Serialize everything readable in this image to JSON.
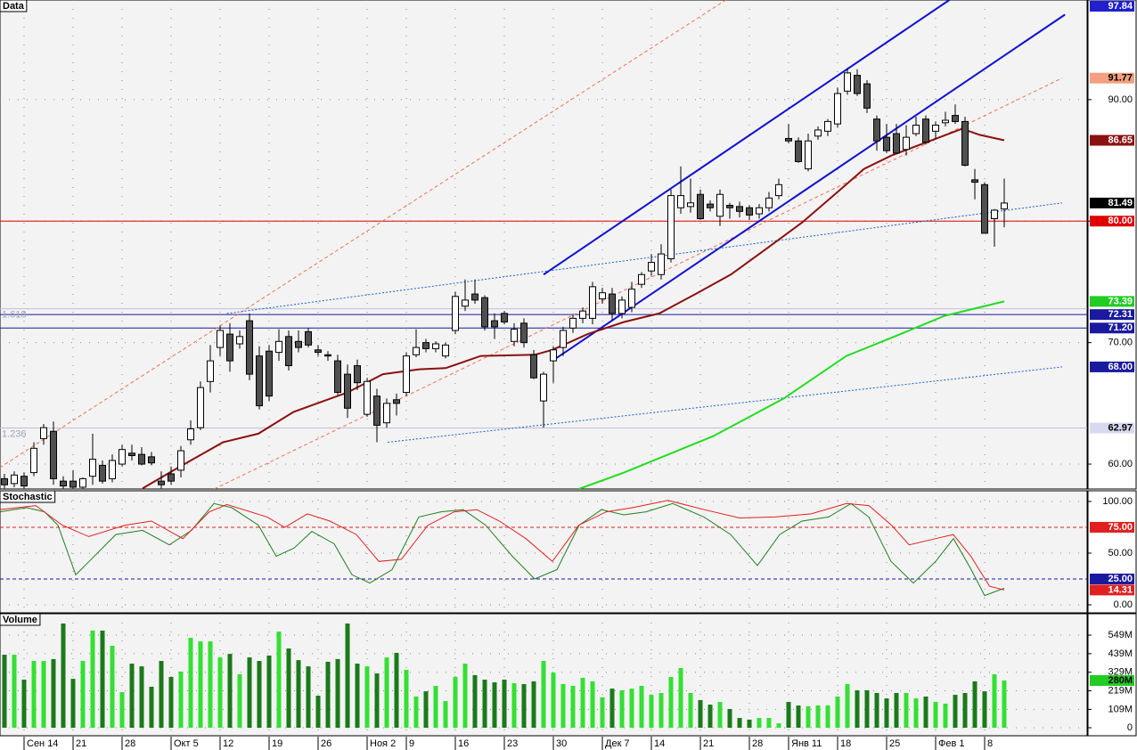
{
  "chart_data": [
    {
      "type": "candlestick",
      "title": "Data",
      "open": [
        58.8,
        58.4,
        59.0,
        59.3,
        62.1,
        62.7,
        58.6,
        58.6,
        58.1,
        59.0,
        59.9,
        58.8,
        60.0,
        60.9,
        60.8,
        60.6,
        58.6,
        59.2,
        59.5,
        62.0,
        63.0,
        66.8,
        69.6,
        70.7,
        69.9,
        71.8,
        68.9,
        69.3,
        69.2,
        70.5,
        70.1,
        70.9,
        69.4,
        69.0,
        68.5,
        67.4,
        68.1,
        64.1,
        65.6,
        63.4,
        65.3,
        65.9,
        69.0,
        70.0,
        69.5,
        68.9,
        71.0,
        73.0,
        74.0,
        73.7,
        71.8,
        72.4,
        70.1,
        71.6,
        69.0,
        65.2,
        68.5,
        69.6,
        71.2,
        72.0,
        72.0,
        73.6,
        74.0,
        72.4,
        72.9,
        74.8,
        75.9,
        75.6,
        76.9,
        81.1,
        81.2,
        82.2,
        81.4,
        80.4,
        81.3,
        81.2,
        81.1,
        80.6,
        81.1,
        82.1,
        86.8,
        86.6,
        84.3,
        87.0,
        87.4,
        88.0,
        90.7,
        92.0,
        91.3,
        88.4,
        86.9,
        87.2,
        85.9,
        87.2,
        88.4,
        87.4,
        88.1,
        88.7,
        88.2,
        83.4,
        83.0,
        80.2,
        81.0
      ],
      "high": [
        59.2,
        59.4,
        59.3,
        61.8,
        63.3,
        63.5,
        59.0,
        59.5,
        58.9,
        62.5,
        60.3,
        60.8,
        61.6,
        61.6,
        61.4,
        61.0,
        59.4,
        59.8,
        61.5,
        63.6,
        66.8,
        69.8,
        71.4,
        71.6,
        71.0,
        72.4,
        69.7,
        69.8,
        71.1,
        71.0,
        71.0,
        71.2,
        69.8,
        69.3,
        69.0,
        68.2,
        68.6,
        67.1,
        66.2,
        65.4,
        65.8,
        69.2,
        71.1,
        70.3,
        70.1,
        70.0,
        74.2,
        75.2,
        75.2,
        73.9,
        72.4,
        72.6,
        71.6,
        72.0,
        69.4,
        67.6,
        69.7,
        71.3,
        72.3,
        72.9,
        75.0,
        74.5,
        74.5,
        73.8,
        75.0,
        75.8,
        77.3,
        78.1,
        82.6,
        84.5,
        83.5,
        82.6,
        81.7,
        82.6,
        81.5,
        81.6,
        81.3,
        81.4,
        82.4,
        83.5,
        88.0,
        86.9,
        87.2,
        87.8,
        88.4,
        91.0,
        92.6,
        92.5,
        91.6,
        88.7,
        88.0,
        88.0,
        87.9,
        88.6,
        88.7,
        88.2,
        89.0,
        89.6,
        88.6,
        84.3,
        83.2,
        81.0,
        83.5
      ],
      "low": [
        58.0,
        58.1,
        58.0,
        59.0,
        61.6,
        58.3,
        58.0,
        58.0,
        58.0,
        58.3,
        58.4,
        58.5,
        59.8,
        60.3,
        59.9,
        59.9,
        58.0,
        58.3,
        58.9,
        61.6,
        62.8,
        65.9,
        68.9,
        67.6,
        69.5,
        66.9,
        64.5,
        65.2,
        68.5,
        67.7,
        69.2,
        69.6,
        68.9,
        68.5,
        65.7,
        63.8,
        66.1,
        63.9,
        61.8,
        63.0,
        64.0,
        65.6,
        68.8,
        69.2,
        69.2,
        68.7,
        70.7,
        72.6,
        73.2,
        71.0,
        70.3,
        71.5,
        69.7,
        69.6,
        67.0,
        63.0,
        66.7,
        68.9,
        70.8,
        71.6,
        71.5,
        73.2,
        71.9,
        72.0,
        72.5,
        74.5,
        75.5,
        75.2,
        76.6,
        80.6,
        80.7,
        80.1,
        80.8,
        79.6,
        80.2,
        80.3,
        80.1,
        80.2,
        80.8,
        81.8,
        86.4,
        84.8,
        84.1,
        86.7,
        87.0,
        87.7,
        90.4,
        90.3,
        88.9,
        85.8,
        85.6,
        85.5,
        85.4,
        87.0,
        86.3,
        86.8,
        87.8,
        88.0,
        84.5,
        81.8,
        79.0,
        77.9,
        79.5
      ],
      "close": [
        58.3,
        59.1,
        58.2,
        61.3,
        63.0,
        58.8,
        58.2,
        58.1,
        58.8,
        60.4,
        58.6,
        60.3,
        61.2,
        60.7,
        60.0,
        60.1,
        58.3,
        58.6,
        61.1,
        62.9,
        66.3,
        68.5,
        71.0,
        68.5,
        70.5,
        67.4,
        64.8,
        65.6,
        70.1,
        68.1,
        69.6,
        69.8,
        69.2,
        68.9,
        65.9,
        64.6,
        66.7,
        66.8,
        63.2,
        65.0,
        65.0,
        68.9,
        69.6,
        69.5,
        69.9,
        69.8,
        73.8,
        73.5,
        73.5,
        71.3,
        71.3,
        71.7,
        71.1,
        70.0,
        67.1,
        67.4,
        69.4,
        71.0,
        72.0,
        72.6,
        74.6,
        74.1,
        72.4,
        73.5,
        74.4,
        75.6,
        76.6,
        77.3,
        82.1,
        82.1,
        81.5,
        80.2,
        81.1,
        82.2,
        81.1,
        80.8,
        80.5,
        81.1,
        81.9,
        83.0,
        86.6,
        84.9,
        86.6,
        87.5,
        88.2,
        90.5,
        92.2,
        90.5,
        89.3,
        86.6,
        85.8,
        85.6,
        86.9,
        87.9,
        86.5,
        87.9,
        88.3,
        88.2,
        84.6,
        83.2,
        79.0,
        80.9,
        81.49
      ],
      "up_color": "#ffffff",
      "down_color": "#505050",
      "ylim": [
        57.95,
        98.2
      ],
      "yticks": [
        {
          "value": 60,
          "label": "60.00"
        },
        {
          "value": 70,
          "label": "70.00"
        },
        {
          "value": 80,
          "label": "80.00"
        },
        {
          "value": 90,
          "label": "90.00"
        }
      ],
      "grid": true,
      "lines": [
        {
          "color": "#8b1010",
          "x": [
            14.1,
            17.7,
            22.3,
            25.9,
            29.5,
            35,
            38.6,
            42.3,
            45,
            48.6,
            54.1,
            55.9,
            59.5,
            63.2,
            66.8,
            70.5,
            74.1,
            77.7,
            81.4,
            85,
            87.7,
            90.5,
            94.1,
            97.7,
            99.5,
            102
          ],
          "values": [
            58,
            59.7,
            61.8,
            62.5,
            64.3,
            65.9,
            67.4,
            67.8,
            67.9,
            68.9,
            69,
            69.4,
            70.7,
            71.7,
            72.4,
            74,
            75.6,
            77.7,
            79.9,
            82.4,
            84.3,
            85.4,
            86.5,
            87.6,
            87.1,
            86.65
          ]
        },
        {
          "color": "#22dd22",
          "x": [
            58.6,
            63.2,
            72.3,
            79.5,
            85.9,
            90.5,
            95.9,
            102
          ],
          "values": [
            57.95,
            59.3,
            62.3,
            65.4,
            68.9,
            70.4,
            72.2,
            73.39
          ]
        }
      ],
      "trendlines": [
        {
          "color": "#f07050",
          "dash": "dashed",
          "x": [
            -0.5,
            73.6
          ],
          "values": [
            59.7,
            98.2
          ]
        },
        {
          "color": "#f07050",
          "dash": "dashed",
          "x": [
            21.4,
            107.9
          ],
          "values": [
            57.95,
            91.77
          ]
        },
        {
          "color": "#1010d0",
          "dash": "solid",
          "x": [
            55,
            96.4
          ],
          "values": [
            75.6,
            98.2
          ]
        },
        {
          "color": "#1010d0",
          "dash": "solid",
          "x": [
            55.9,
            108.2
          ],
          "values": [
            68.5,
            97.0
          ]
        },
        {
          "color": "#1060d0",
          "dash": "dotted",
          "x": [
            22.7,
            107.9
          ],
          "values": [
            72.4,
            81.5
          ]
        },
        {
          "color": "#1060d0",
          "dash": "dotted",
          "x": [
            39.1,
            107.9
          ],
          "values": [
            61.8,
            68.0
          ]
        }
      ],
      "hlines": [
        {
          "value": 80,
          "color": "#e00000"
        },
        {
          "value": 72.31,
          "color": "#1a1aa0"
        },
        {
          "value": 71.2,
          "color": "#1a1aa0"
        },
        {
          "value": 72.79,
          "color": "#c0c0d8",
          "label": "1.618"
        },
        {
          "value": 62.97,
          "color": "#c0c0d8",
          "label": "1.236"
        }
      ],
      "markers": [
        {
          "value": 97.84,
          "label": "97.84",
          "color": "#2020d0",
          "text_color": "#ffffff"
        },
        {
          "value": 91.77,
          "label": "91.77",
          "color": "#f4a080",
          "text_color": "#000000"
        },
        {
          "value": 86.65,
          "label": "86.65",
          "color": "#8b1010",
          "text_color": "#ffffff"
        },
        {
          "value": 81.49,
          "label": "81.49",
          "color": "#000000",
          "text_color": "#ffffff"
        },
        {
          "value": 80,
          "label": "80.00",
          "color": "#e00000",
          "text_color": "#ffffff"
        },
        {
          "value": 73.39,
          "label": "73.39",
          "color": "#22cc22",
          "text_color": "#ffffff"
        },
        {
          "value": 72.31,
          "label": "72.31",
          "color": "#1a1aa0",
          "text_color": "#ffffff"
        },
        {
          "value": 71.2,
          "label": "71.20",
          "color": "#1a1aa0",
          "text_color": "#ffffff"
        },
        {
          "value": 68,
          "label": "68.00",
          "color": "#1a1aa0",
          "text_color": "#ffffff"
        },
        {
          "value": 62.97,
          "label": "62.97",
          "color": "#d8d8f0",
          "text_color": "#000000"
        }
      ]
    },
    {
      "type": "line",
      "title": "Stochastic",
      "series": [
        {
          "color": "#208020",
          "x": [
            -0.45,
            2.27,
            4.09,
            5.45,
            7.27,
            8.64,
            11.36,
            14.09,
            16.82,
            19.09,
            21.36,
            23.18,
            25.91,
            27.73,
            29.55,
            31.36,
            33.64,
            35.45,
            37.27,
            39.55,
            42.27,
            44.55,
            46.82,
            49.09,
            51.82,
            54.09,
            56.36,
            58.64,
            60.91,
            63.18,
            65.45,
            68.18,
            71.36,
            74.09,
            76.82,
            79.09,
            81.36,
            84.09,
            86.36,
            88.18,
            90.45,
            92.73,
            95,
            96.82,
            98.64,
            100,
            102
          ],
          "values": [
            90,
            94,
            90,
            77,
            29,
            42,
            68,
            72,
            58,
            72,
            98,
            94,
            77,
            47,
            55,
            71,
            59,
            29,
            21,
            34,
            85,
            90,
            92,
            77,
            47,
            25,
            34,
            77,
            92,
            87,
            90,
            98,
            85,
            68,
            38,
            68,
            81,
            85,
            98,
            85,
            42,
            21,
            42,
            64,
            34,
            9,
            16
          ]
        },
        {
          "color": "#e02020",
          "x": [
            -0.5,
            3.2,
            5.9,
            8.6,
            12.3,
            15,
            18.2,
            20.9,
            22.7,
            26.8,
            28.6,
            30.9,
            33.2,
            35.9,
            38.2,
            40.5,
            43.2,
            45.9,
            48.2,
            50.5,
            53.2,
            55.9,
            58.6,
            61.4,
            64.1,
            67.7,
            71.4,
            75,
            78.6,
            82.3,
            85.9,
            88.2,
            90.5,
            92.3,
            95,
            96.8,
            98.6,
            100.5,
            102
          ],
          "values": [
            92,
            96,
            77,
            66,
            77,
            81,
            64,
            90,
            97,
            85,
            75,
            88,
            81,
            68,
            42,
            44,
            77,
            90,
            92,
            81,
            64,
            42,
            77,
            90,
            94,
            101,
            92,
            84,
            85,
            88,
            98,
            96,
            77,
            58,
            64,
            68,
            47,
            18,
            14.31
          ]
        }
      ],
      "ylim": [
        -7.76,
        110.3
      ],
      "yticks": [
        {
          "value": 0,
          "label": "0.00"
        },
        {
          "value": 50,
          "label": "50.00"
        },
        {
          "value": 100,
          "label": "100.00"
        }
      ],
      "grid": true,
      "hlines": [
        {
          "value": 75,
          "color": "#e02020",
          "dash": "dashed"
        },
        {
          "value": 25,
          "color": "#1a1aa0",
          "dash": "dashed"
        }
      ],
      "markers": [
        {
          "value": 75,
          "label": "75.00",
          "color": "#e02020",
          "text_color": "#ffffff"
        },
        {
          "value": 25,
          "label": "25.00",
          "color": "#1a1aa0",
          "text_color": "#ffffff"
        },
        {
          "value": 14.31,
          "label": "14.31",
          "color": "#e02020",
          "text_color": "#ffffff"
        }
      ]
    },
    {
      "type": "bar",
      "title": "Volume",
      "categories": [
        null,
        null,
        "Сен 14",
        null,
        null,
        null,
        null,
        "21",
        null,
        null,
        null,
        null,
        "28",
        null,
        null,
        null,
        null,
        "Окт 5",
        null,
        null,
        null,
        null,
        "12",
        null,
        null,
        null,
        null,
        "19",
        null,
        null,
        null,
        null,
        "26",
        null,
        null,
        null,
        null,
        "Ноя 2",
        null,
        null,
        null,
        "9",
        null,
        null,
        null,
        null,
        "16",
        null,
        null,
        null,
        null,
        "23",
        null,
        null,
        null,
        null,
        "30",
        null,
        null,
        null,
        null,
        "Дек 7",
        null,
        null,
        null,
        null,
        "14",
        null,
        null,
        null,
        null,
        "21",
        null,
        null,
        null,
        null,
        "28",
        null,
        null,
        null,
        "Янв 11",
        null,
        null,
        null,
        null,
        "18",
        null,
        null,
        null,
        null,
        "25",
        null,
        null,
        null,
        null,
        "Фев 1",
        null,
        null,
        null,
        null,
        "8",
        null,
        null
      ],
      "values": [
        433,
        433,
        285,
        396,
        396,
        407,
        618,
        290,
        396,
        576,
        576,
        486,
        211,
        380,
        364,
        243,
        396,
        301,
        333,
        533,
        512,
        512,
        417,
        438,
        317,
        417,
        396,
        428,
        570,
        470,
        401,
        364,
        190,
        391,
        407,
        618,
        380,
        364,
        322,
        417,
        444,
        343,
        185,
        216,
        248,
        158,
        301,
        380,
        312,
        285,
        269,
        285,
        264,
        259,
        275,
        396,
        327,
        259,
        248,
        296,
        275,
        180,
        232,
        222,
        232,
        248,
        195,
        206,
        301,
        354,
        206,
        164,
        137,
        153,
        111,
        58,
        48,
        58,
        58,
        26,
        153,
        132,
        127,
        132,
        132,
        185,
        259,
        222,
        222,
        206,
        174,
        206,
        206,
        174,
        185,
        153,
        143,
        195,
        206,
        275,
        216,
        317,
        280
      ],
      "up_color": "#33e033",
      "down_color": "#1a7a1a",
      "ylim": [
        -47.5,
        676
      ],
      "yticks": [
        0,
        {
          "value": 109,
          "label": "109M"
        },
        {
          "value": 219,
          "label": "219M"
        },
        {
          "value": 329,
          "label": "329M"
        },
        {
          "value": 439,
          "label": "439M"
        },
        {
          "value": 549,
          "label": "549M"
        }
      ],
      "grid": true,
      "markers": [
        {
          "value": 280,
          "label": "280M",
          "color": "#22cc22",
          "text_color": "#000000"
        }
      ]
    }
  ]
}
